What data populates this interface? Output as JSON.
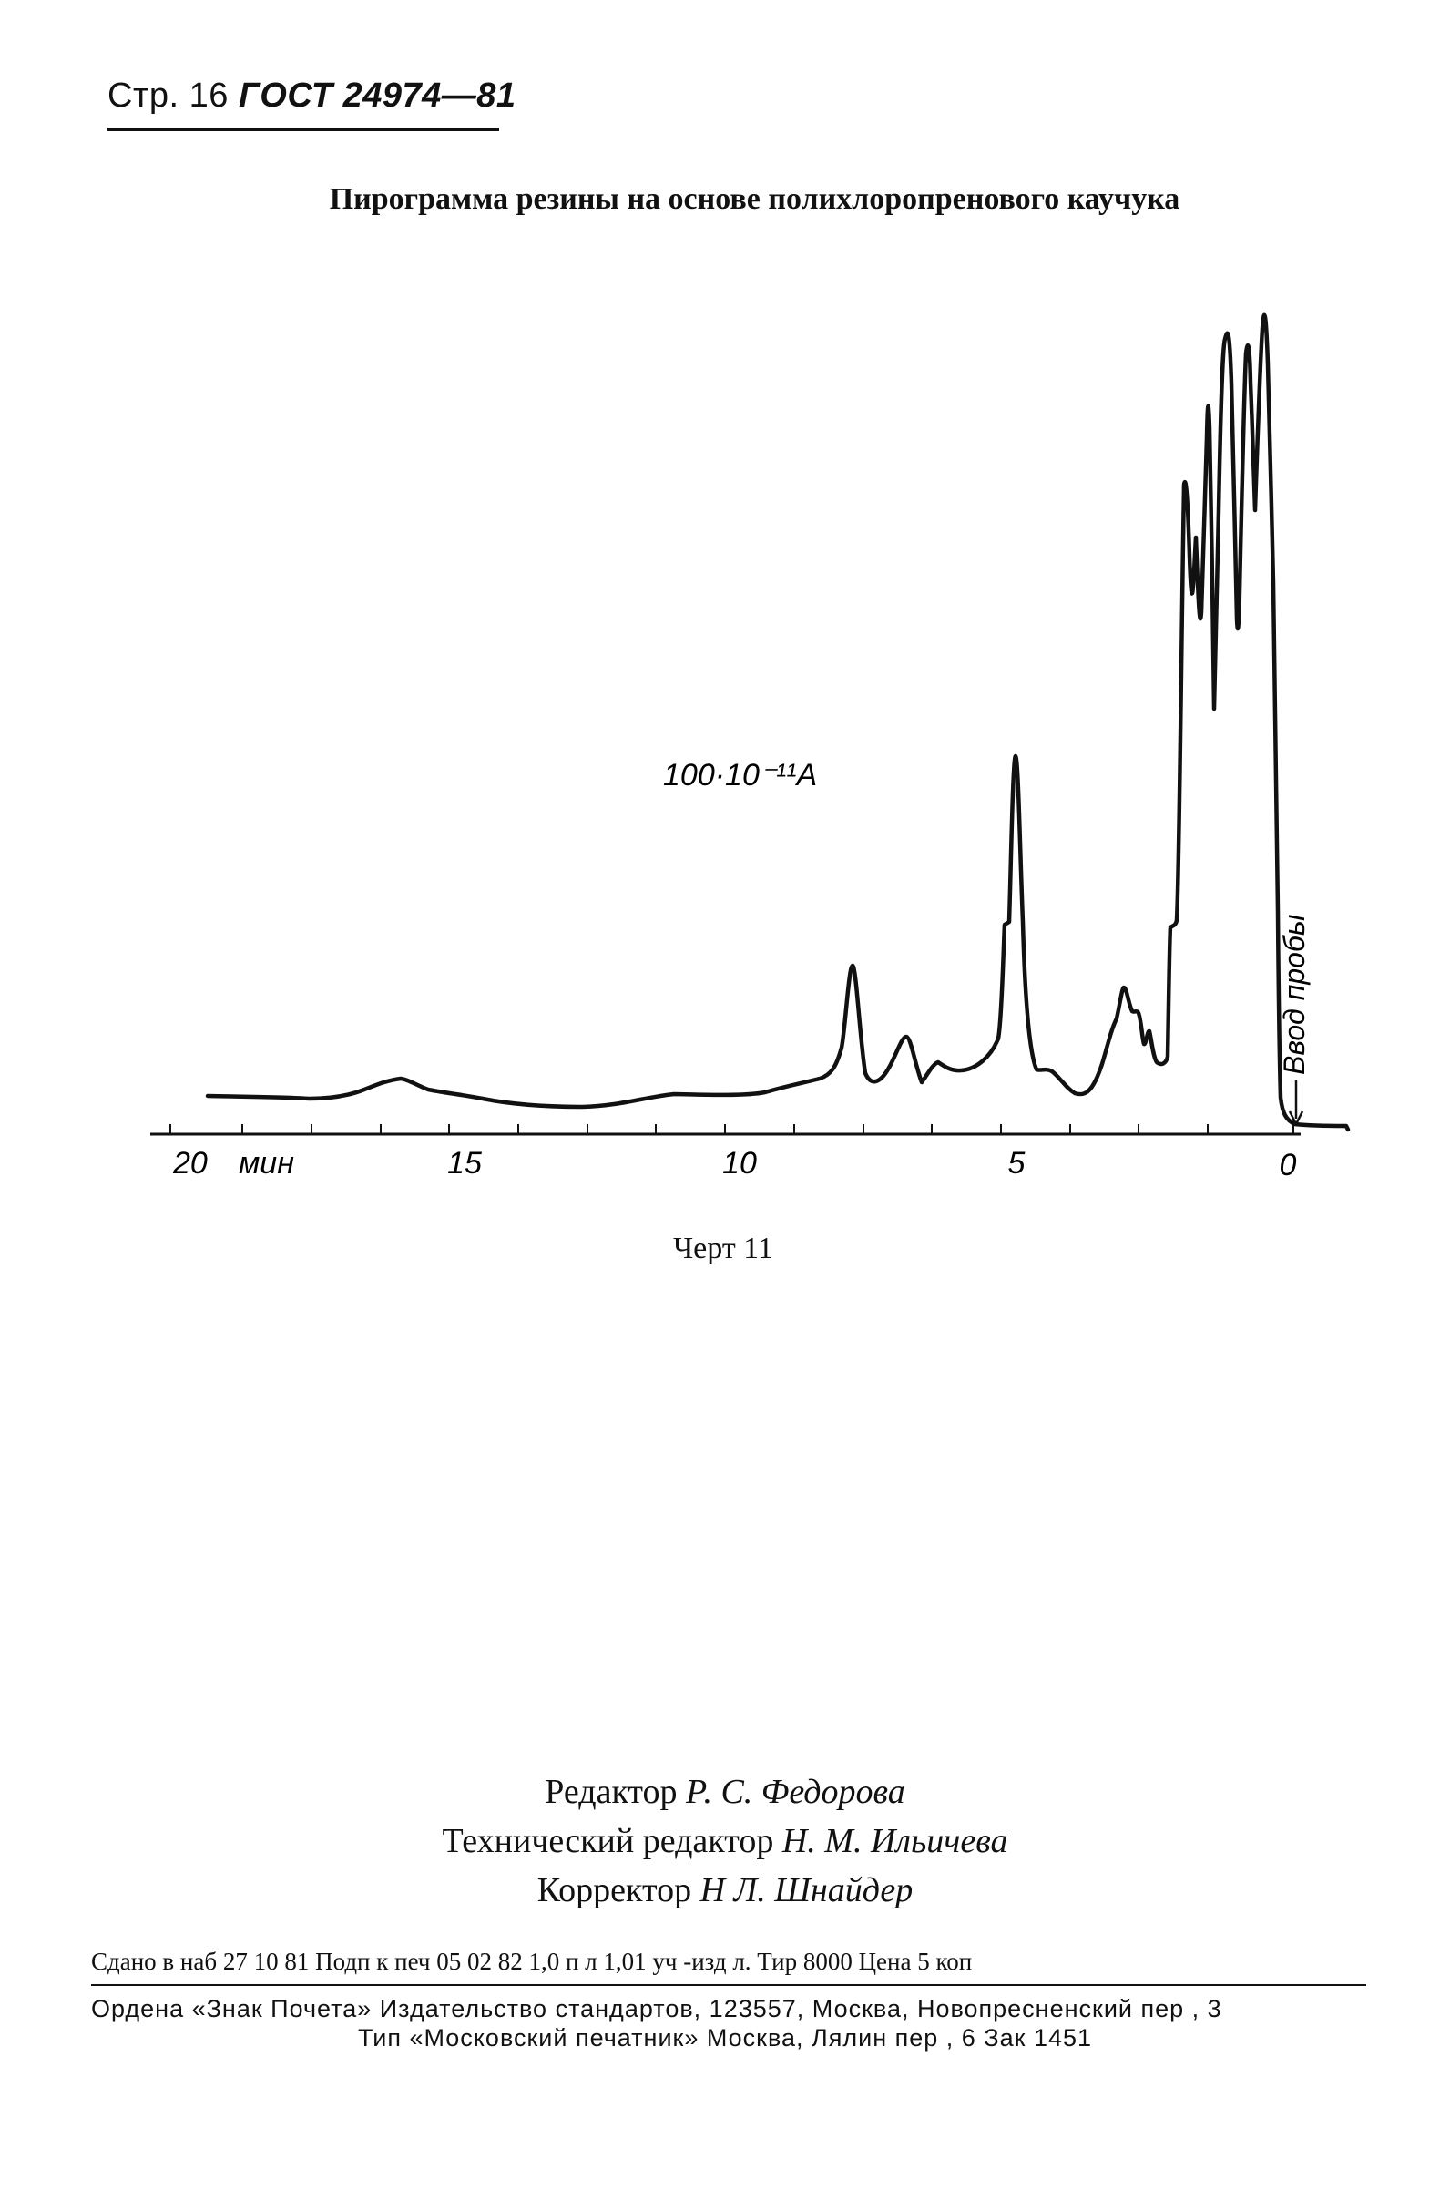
{
  "header": {
    "page_prefix": "Стр. 16",
    "standard": "ГОСТ 24974—81"
  },
  "figure": {
    "title": "Пирограмма резины на основе полихлоропренового каучука",
    "scale_label": "100·10⁻¹¹А",
    "axis_unit": "мин",
    "ticks": [
      "20",
      "15",
      "10",
      "5",
      "0"
    ],
    "injection_label": "Ввод пробы",
    "caption": "Черт 11"
  },
  "credits": [
    {
      "role": "Редактор",
      "name": "Р. С. Федорова"
    },
    {
      "role": "Технический редактор",
      "name": "Н. М. Ильичева"
    },
    {
      "role": "Корректор",
      "name": "Н Л. Шнайдер"
    }
  ],
  "imprint": {
    "line1": "Сдано в наб 27 10 81 Подп к печ 05 02 82 1,0 п л 1,01 уч -изд л. Тир 8000 Цена 5 коп",
    "line2": "Ордена «Знак Почета» Издательство стандартов, 123557, Москва, Новопресненский пер , 3",
    "line3": "Тип «Московский печатник» Москва, Лялин пер , 6 Зак 1451"
  }
}
